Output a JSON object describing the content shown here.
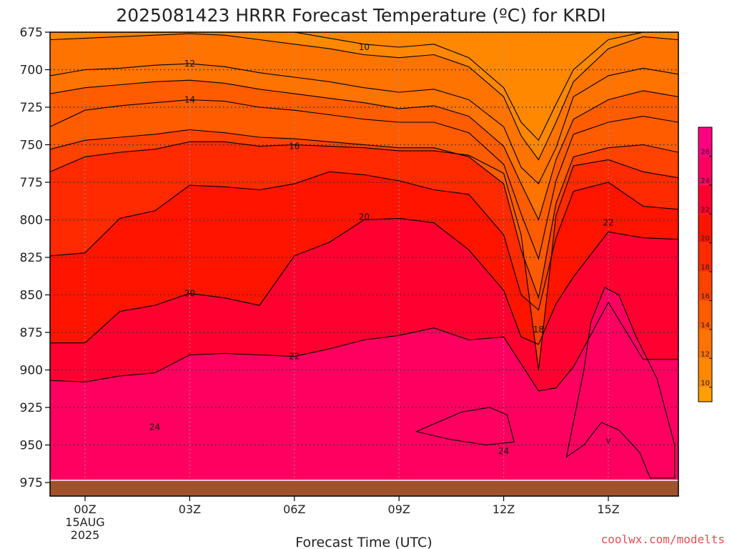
{
  "chart_data": {
    "type": "filled-contour",
    "title": "2025081423 HRRR Forecast Temperature (ºC) for KRDI",
    "xlabel": "Forecast Time (UTC)",
    "ylabel": "",
    "x_unit": "forecast hour (UTC)",
    "y_unit": "pressure (hPa)",
    "xlim": [
      -1,
      17
    ],
    "ylim": [
      675,
      980
    ],
    "y_scale": "linear, pressure increasing downward",
    "grid": true,
    "x_ticks": [
      {
        "x": 0,
        "label": "00Z",
        "sub1": "15AUG",
        "sub2": "2025"
      },
      {
        "x": 3,
        "label": "03Z"
      },
      {
        "x": 6,
        "label": "06Z"
      },
      {
        "x": 9,
        "label": "09Z"
      },
      {
        "x": 12,
        "label": "12Z"
      },
      {
        "x": 15,
        "label": "15Z"
      }
    ],
    "y_ticks": [
      {
        "p": 675,
        "label": "675"
      },
      {
        "p": 700,
        "label": "700"
      },
      {
        "p": 725,
        "label": "725"
      },
      {
        "p": 750,
        "label": "750"
      },
      {
        "p": 775,
        "label": "775"
      },
      {
        "p": 800,
        "label": "800"
      },
      {
        "p": 825,
        "label": "825"
      },
      {
        "p": 850,
        "label": "850"
      },
      {
        "p": 875,
        "label": "875"
      },
      {
        "p": 900,
        "label": "900"
      },
      {
        "p": 925,
        "label": "925"
      },
      {
        "p": 950,
        "label": "950"
      },
      {
        "p": 975,
        "label": "975"
      }
    ],
    "x_nodes": [
      -1,
      0,
      1,
      2,
      3,
      4,
      5,
      6,
      7,
      8,
      9,
      10,
      11,
      12,
      12.5,
      13,
      13.5,
      14,
      15,
      16,
      17
    ],
    "isotherms": [
      {
        "level": 10,
        "p": [
          675,
          675,
          675,
          675,
          675,
          675,
          675,
          675,
          679,
          683,
          685,
          683,
          692,
          712,
          735,
          747,
          723,
          700,
          680,
          675,
          675
        ]
      },
      {
        "level": 11,
        "p": [
          680,
          679,
          678,
          677,
          676,
          677,
          680,
          683,
          686,
          690,
          692,
          690,
          698,
          718,
          744,
          760,
          735,
          708,
          686,
          678,
          680
        ]
      },
      {
        "level": 12,
        "p": [
          704,
          700,
          699,
          697,
          696,
          698,
          702,
          705,
          708,
          712,
          715,
          713,
          720,
          738,
          765,
          776,
          752,
          718,
          704,
          699,
          703
        ]
      },
      {
        "level": 13,
        "p": [
          716,
          712,
          710,
          708,
          707,
          709,
          713,
          716,
          719,
          722,
          726,
          724,
          731,
          751,
          776,
          800,
          760,
          733,
          720,
          714,
          718
        ]
      },
      {
        "level": 14,
        "p": [
          738,
          727,
          724,
          722,
          720,
          721,
          725,
          727,
          730,
          733,
          735,
          735,
          742,
          763,
          796,
          826,
          774,
          743,
          735,
          731,
          735
        ]
      },
      {
        "level": 15,
        "p": [
          753,
          747,
          745,
          743,
          740,
          742,
          745,
          746,
          748,
          750,
          752,
          752,
          758,
          776,
          820,
          852,
          789,
          758,
          752,
          750,
          755
        ]
      },
      {
        "level": 16,
        "p": [
          768,
          758,
          755,
          753,
          748,
          748,
          751,
          750,
          751,
          752,
          754,
          754,
          757,
          769,
          810,
          900,
          797,
          764,
          760,
          768,
          772
        ]
      },
      {
        "level": 18,
        "p": [
          824,
          822,
          799,
          794,
          777,
          778,
          780,
          776,
          768,
          770,
          774,
          780,
          783,
          810,
          850,
          860,
          812,
          781,
          775,
          791,
          793
        ]
      },
      {
        "level": 20,
        "p": [
          882,
          882,
          861,
          857,
          849,
          852,
          857,
          824,
          815,
          800,
          799,
          802,
          820,
          847,
          878,
          883,
          856,
          838,
          808,
          812,
          813
        ]
      },
      {
        "level": 22,
        "p": [
          907,
          908,
          904,
          902,
          890,
          889,
          890,
          891,
          886,
          880,
          877,
          872,
          880,
          878,
          896,
          914,
          912,
          898,
          855,
          893,
          893
        ]
      }
    ],
    "closed_regions": [
      {
        "level": 23,
        "left": [
          12.3,
          12.35
        ],
        "top_x": [
          9.5,
          11.6
        ],
        "points": [
          [
            9.5,
            941
          ],
          [
            10.8,
            928
          ],
          [
            11.6,
            925
          ],
          [
            12.1,
            930
          ],
          [
            12.3,
            948
          ],
          [
            11.5,
            950
          ],
          [
            10.4,
            946
          ],
          [
            9.5,
            941
          ]
        ]
      },
      {
        "level": 24,
        "points": [
          [
            13.8,
            958
          ],
          [
            14.3,
            900
          ],
          [
            14.5,
            868
          ],
          [
            14.9,
            845
          ],
          [
            15.3,
            850
          ],
          [
            15.8,
            878
          ],
          [
            16.4,
            906
          ],
          [
            16.9,
            950
          ],
          [
            16.9,
            972
          ],
          [
            16.2,
            972
          ],
          [
            15.9,
            955
          ],
          [
            15.3,
            940
          ],
          [
            14.8,
            935
          ],
          [
            14.3,
            950
          ],
          [
            13.8,
            958
          ]
        ]
      }
    ],
    "contour_labels": [
      {
        "text": "10",
        "x": 8.0,
        "p": 685
      },
      {
        "text": "12",
        "x": 3.0,
        "p": 696
      },
      {
        "text": "14",
        "x": 3.0,
        "p": 720
      },
      {
        "text": "16",
        "x": 6.0,
        "p": 751
      },
      {
        "text": "20",
        "x": 8.0,
        "p": 798
      },
      {
        "text": "22",
        "x": 15.0,
        "p": 802
      },
      {
        "text": "18",
        "x": 13.0,
        "p": 873
      },
      {
        "text": "20",
        "x": 3.0,
        "p": 849
      },
      {
        "text": "22",
        "x": 6.0,
        "p": 891
      },
      {
        "text": "24",
        "x": 2.0,
        "p": 938
      },
      {
        "text": "24",
        "x": 12.0,
        "p": 954
      },
      {
        "text": "v",
        "x": 15.0,
        "p": 947
      }
    ],
    "surface_p": 974,
    "colorbar": {
      "min": 9,
      "max": 28,
      "ticks": [
        10,
        12,
        14,
        16,
        18,
        20,
        22,
        24,
        26
      ],
      "tick_labels": [
        "10",
        "12",
        "14",
        "16",
        "18",
        "20",
        "22",
        "24",
        "26"
      ],
      "colors": [
        "#ffa000",
        "#ff8800",
        "#ff7300",
        "#ff5c00",
        "#ff4200",
        "#ff2a00",
        "#ff1400",
        "#ff0030",
        "#ff0060",
        "#ff0080",
        "#ff0085"
      ]
    },
    "ground_color": "#a0522d"
  },
  "credit": "coolwx.com/modelts"
}
